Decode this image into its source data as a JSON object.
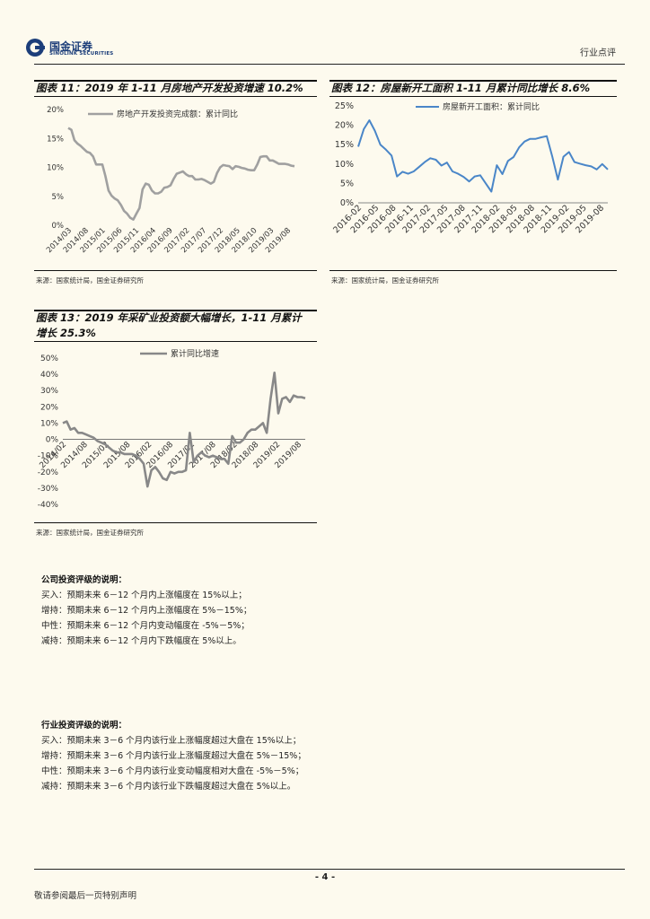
{
  "header": {
    "logo_cn": "国金证券",
    "logo_en": "SINOLINK SECURITIES",
    "section": "行业点评"
  },
  "colors": {
    "gray_line": "#a0a0a0",
    "blue_line": "#4a86c8",
    "dark_gray_line": "#888888"
  },
  "figures": [
    {
      "title": "图表 11：2019 年 1-11 月房地产开发投资增速 10.2%",
      "source": "来源：国家统计局，国金证券研究所"
    },
    {
      "title": "图表 12：房屋新开工面积 1-11 月累计同比增长 8.6%",
      "source": "来源：国家统计局，国金证券研究所"
    },
    {
      "title_line1": "图表 13：2019 年采矿业投资额大幅增长，1-11 月累计",
      "title_line2": "增长 25.3%",
      "source": "来源：国家统计局，国金证券研究所"
    }
  ],
  "chart_data": [
    {
      "type": "line",
      "legend": "房地产开发投资完成额：累计同比",
      "ylim": [
        0,
        20
      ],
      "y_ticks": [
        "20%",
        "15%",
        "10%",
        "5%",
        "0%"
      ],
      "x_ticks": [
        "2014/03",
        "2014/08",
        "2015/01",
        "2015/06",
        "2015/11",
        "2016/04",
        "2016/09",
        "2017/02",
        "2017/07",
        "2017/12",
        "2018/05",
        "2018/10",
        "2019/03",
        "2019/08"
      ],
      "values": [
        16.8,
        16.5,
        14.7,
        14.1,
        13.7,
        13.2,
        12.7,
        12.5,
        11.9,
        10.5,
        10.5,
        10.5,
        8.5,
        6.0,
        5.1,
        4.6,
        4.3,
        3.5,
        2.5,
        2.0,
        1.3,
        1.0,
        2.0,
        3.0,
        6.2,
        7.2,
        7.0,
        6.0,
        5.5,
        5.5,
        5.8,
        6.5,
        6.6,
        6.9,
        8.0,
        8.9,
        9.1,
        9.3,
        8.8,
        8.5,
        8.5,
        7.9,
        7.9,
        8.0,
        7.8,
        7.5,
        7.2,
        7.5,
        9.0,
        10.0,
        10.4,
        10.3,
        10.2,
        9.7,
        10.2,
        10.1,
        9.9,
        9.8,
        9.6,
        9.5,
        9.5,
        10.5,
        11.8,
        11.9,
        11.9,
        11.2,
        11.2,
        10.9,
        10.6,
        10.6,
        10.6,
        10.5,
        10.3,
        10.2
      ]
    },
    {
      "type": "line",
      "legend": "房屋新开工面积：累计同比",
      "ylim": [
        0,
        25
      ],
      "y_ticks": [
        "25%",
        "20%",
        "15%",
        "10%",
        "5%",
        "0%"
      ],
      "x_ticks": [
        "2016-02",
        "2016-05",
        "2016-08",
        "2016-11",
        "2017-02",
        "2017-05",
        "2017-08",
        "2017-11",
        "2018-02",
        "2018-05",
        "2018-08",
        "2018-11",
        "2019-02",
        "2019-05",
        "2019-08"
      ],
      "values": [
        14.5,
        19.0,
        21.3,
        18.6,
        15.0,
        13.7,
        12.2,
        6.8,
        8.0,
        7.5,
        8.1,
        9.3,
        10.5,
        11.5,
        11.1,
        9.6,
        10.4,
        8.1,
        7.5,
        6.7,
        5.5,
        6.8,
        7.1,
        5.0,
        2.9,
        9.7,
        7.4,
        10.8,
        11.8,
        14.3,
        15.8,
        16.5,
        16.5,
        16.9,
        17.2,
        11.9,
        6.0,
        11.9,
        13.1,
        10.5,
        10.1,
        9.7,
        9.4,
        8.6,
        10.0,
        8.6
      ]
    },
    {
      "type": "line",
      "legend": "累计同比增速",
      "ylim": [
        -40,
        50
      ],
      "y_ticks": [
        "50%",
        "40%",
        "30%",
        "20%",
        "10%",
        "0%",
        "-10%",
        "-20%",
        "-30%",
        "-40%"
      ],
      "x_ticks": [
        "2014/02",
        "2014/08",
        "2015/02",
        "2015/08",
        "2016/02",
        "2016/08",
        "2017/02",
        "2017/08",
        "2018/02",
        "2018/08",
        "2019/02",
        "2019/08"
      ],
      "values": [
        10,
        11,
        6,
        7,
        4,
        4,
        3,
        2,
        1,
        -1,
        -2,
        -3,
        -5,
        -7,
        -8,
        -8,
        -9,
        -9,
        -9,
        -10,
        -12,
        -15,
        -29,
        -19,
        -17,
        -20,
        -24,
        -25,
        -20,
        -21,
        -20,
        -20,
        -19,
        4,
        -14,
        -10,
        -8,
        -10,
        -11,
        -10,
        -11,
        -12,
        -12,
        -15,
        2,
        -2,
        -2,
        0,
        4,
        6,
        6,
        8,
        10,
        4,
        25,
        41,
        16,
        25,
        26,
        23,
        27,
        26,
        26,
        25.3
      ]
    }
  ],
  "ratings": {
    "company": {
      "title": "公司投资评级的说明：",
      "lines": [
        "买入：预期未来 6－12 个月内上涨幅度在 15%以上；",
        "增持：预期未来 6－12 个月内上涨幅度在 5%－15%；",
        "中性：预期未来 6－12 个月内变动幅度在 -5%－5%；",
        "减持：预期未来 6－12 个月内下跌幅度在 5%以上。"
      ]
    },
    "industry": {
      "title": "行业投资评级的说明：",
      "lines": [
        "买入：预期未来 3－6 个月内该行业上涨幅度超过大盘在 15%以上；",
        "增持：预期未来 3－6 个月内该行业上涨幅度超过大盘在 5%－15%；",
        "中性：预期未来 3－6 个月内该行业变动幅度相对大盘在 -5%－5%；",
        "减持：预期未来 3－6 个月内该行业下跌幅度超过大盘在 5%以上。"
      ]
    }
  },
  "footer": {
    "page": "- 4 -",
    "note": "敬请参阅最后一页特别声明"
  }
}
